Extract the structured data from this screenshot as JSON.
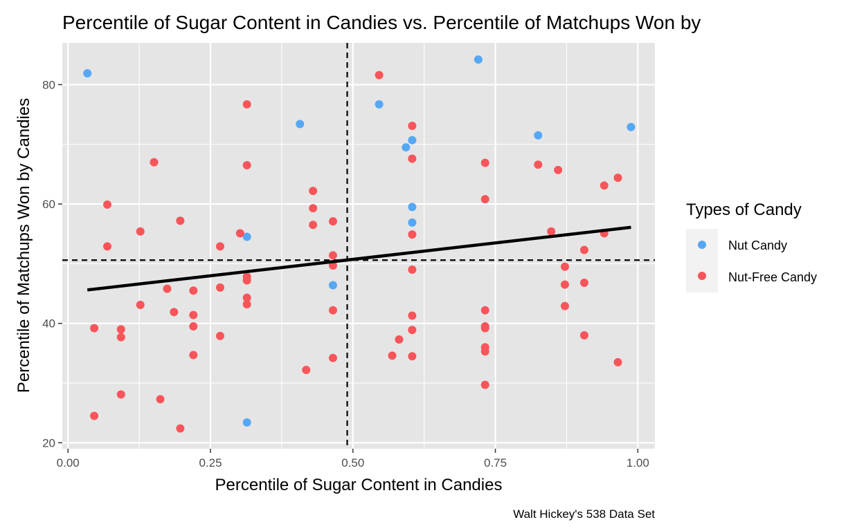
{
  "chart_data": {
    "type": "scatter",
    "title": "Percentile of Sugar Content in Candies vs. Percentile of Matchups Won by",
    "xlabel": "Percentile of Sugar Content in Candies",
    "ylabel": "Percentile of Matchups Won by Candies",
    "caption": "Walt Hickey's 538 Data Set",
    "xlim": [
      -0.01,
      1.03
    ],
    "ylim": [
      19,
      87
    ],
    "x_ticks": [
      0.0,
      0.25,
      0.5,
      0.75,
      1.0
    ],
    "x_tick_labels": [
      "0.00",
      "0.25",
      "0.50",
      "0.75",
      "1.00"
    ],
    "y_ticks": [
      20,
      40,
      60,
      80
    ],
    "y_tick_labels": [
      "20",
      "40",
      "60",
      "80"
    ],
    "grid": true,
    "legend": {
      "title": "Types of Candy",
      "position": "right",
      "entries": [
        "Nut Candy",
        "Nut-Free Candy"
      ]
    },
    "colors": {
      "Nut Candy": "#56a8f5",
      "Nut-Free Candy": "#f8555a"
    },
    "reference_lines": {
      "vline_x": 0.49,
      "hline_y": 50.6
    },
    "trend_line": {
      "x": [
        0.034,
        0.988
      ],
      "y": [
        45.6,
        56.1
      ]
    },
    "series": [
      {
        "name": "Nut Candy",
        "points": [
          [
            0.034,
            81.9
          ],
          [
            0.314,
            54.5
          ],
          [
            0.314,
            23.4
          ],
          [
            0.407,
            73.4
          ],
          [
            0.465,
            46.4
          ],
          [
            0.546,
            76.7
          ],
          [
            0.593,
            69.5
          ],
          [
            0.604,
            70.7
          ],
          [
            0.604,
            59.5
          ],
          [
            0.604,
            56.9
          ],
          [
            0.72,
            84.2
          ],
          [
            0.825,
            71.5
          ],
          [
            0.988,
            72.9
          ]
        ]
      },
      {
        "name": "Nut-Free Candy",
        "points": [
          [
            0.046,
            39.2
          ],
          [
            0.046,
            24.5
          ],
          [
            0.069,
            59.9
          ],
          [
            0.069,
            52.9
          ],
          [
            0.093,
            39.0
          ],
          [
            0.093,
            37.7
          ],
          [
            0.093,
            28.1
          ],
          [
            0.127,
            55.4
          ],
          [
            0.127,
            43.1
          ],
          [
            0.151,
            67.0
          ],
          [
            0.162,
            27.3
          ],
          [
            0.174,
            45.8
          ],
          [
            0.186,
            41.9
          ],
          [
            0.197,
            57.2
          ],
          [
            0.197,
            22.4
          ],
          [
            0.22,
            45.5
          ],
          [
            0.22,
            41.4
          ],
          [
            0.22,
            39.5
          ],
          [
            0.22,
            34.7
          ],
          [
            0.267,
            52.9
          ],
          [
            0.267,
            46.0
          ],
          [
            0.267,
            37.9
          ],
          [
            0.302,
            55.1
          ],
          [
            0.314,
            76.7
          ],
          [
            0.314,
            66.5
          ],
          [
            0.314,
            47.8
          ],
          [
            0.314,
            47.2
          ],
          [
            0.314,
            44.3
          ],
          [
            0.314,
            43.2
          ],
          [
            0.418,
            32.2
          ],
          [
            0.43,
            62.2
          ],
          [
            0.43,
            59.3
          ],
          [
            0.43,
            56.5
          ],
          [
            0.465,
            57.1
          ],
          [
            0.465,
            51.4
          ],
          [
            0.465,
            49.7
          ],
          [
            0.465,
            42.2
          ],
          [
            0.465,
            34.2
          ],
          [
            0.546,
            81.6
          ],
          [
            0.569,
            34.6
          ],
          [
            0.581,
            37.3
          ],
          [
            0.604,
            73.1
          ],
          [
            0.604,
            67.6
          ],
          [
            0.604,
            54.9
          ],
          [
            0.604,
            49.0
          ],
          [
            0.604,
            41.3
          ],
          [
            0.604,
            38.9
          ],
          [
            0.604,
            34.5
          ],
          [
            0.732,
            66.9
          ],
          [
            0.732,
            60.8
          ],
          [
            0.732,
            42.2
          ],
          [
            0.732,
            39.5
          ],
          [
            0.732,
            39.2
          ],
          [
            0.732,
            36.0
          ],
          [
            0.732,
            35.3
          ],
          [
            0.732,
            29.7
          ],
          [
            0.825,
            66.6
          ],
          [
            0.848,
            55.4
          ],
          [
            0.86,
            65.7
          ],
          [
            0.872,
            49.5
          ],
          [
            0.872,
            46.5
          ],
          [
            0.872,
            42.9
          ],
          [
            0.906,
            52.3
          ],
          [
            0.906,
            46.8
          ],
          [
            0.906,
            38.0
          ],
          [
            0.941,
            63.1
          ],
          [
            0.941,
            55.1
          ],
          [
            0.965,
            64.4
          ],
          [
            0.965,
            33.5
          ]
        ]
      }
    ]
  }
}
